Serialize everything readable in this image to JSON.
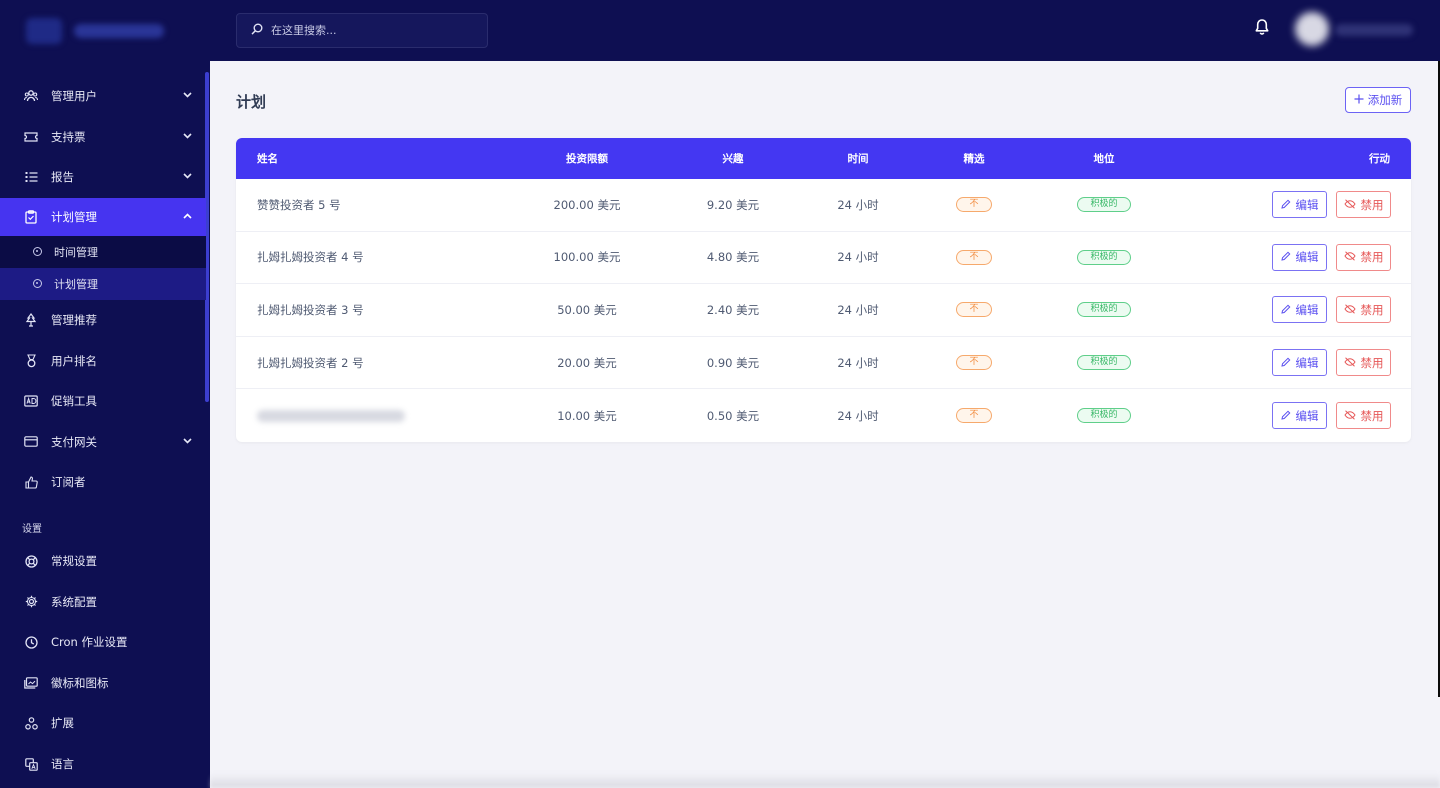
{
  "search": {
    "placeholder": "在这里搜索..."
  },
  "sidebar": {
    "items": [
      {
        "label": "管理用户",
        "icon": "users-icon",
        "chevron": "⌄"
      },
      {
        "label": "支持票",
        "icon": "ticket-icon",
        "chevron": "⌄"
      },
      {
        "label": "报告",
        "icon": "list-icon",
        "chevron": "⌄"
      },
      {
        "label": "计划管理",
        "icon": "clipboard-icon",
        "chevron": "⌃"
      }
    ],
    "subitems": [
      {
        "label": "时间管理"
      },
      {
        "label": "计划管理"
      }
    ],
    "items2": [
      {
        "label": "管理推荐",
        "icon": "tree-icon"
      },
      {
        "label": "用户排名",
        "icon": "medal-icon"
      },
      {
        "label": "促销工具",
        "icon": "ad-icon"
      },
      {
        "label": "支付网关",
        "icon": "credit-card-icon",
        "chevron": "⌄"
      },
      {
        "label": "订阅者",
        "icon": "thumbs-up-icon"
      }
    ],
    "section_title": "设置",
    "settings": [
      {
        "label": "常规设置",
        "icon": "life-ring-icon"
      },
      {
        "label": "系统配置",
        "icon": "gear-icon"
      },
      {
        "label": "Cron 作业设置",
        "icon": "clock-icon"
      },
      {
        "label": "徽标和图标",
        "icon": "image-icon"
      },
      {
        "label": "扩展",
        "icon": "puzzle-icon"
      },
      {
        "label": "语言",
        "icon": "language-icon"
      }
    ]
  },
  "main": {
    "title": "计划",
    "add_button": "添加新",
    "columns": {
      "name": "姓名",
      "invest": "投资限额",
      "interest": "兴趣",
      "time": "时间",
      "featured": "精选",
      "status": "地位",
      "action": "行动"
    },
    "rows": [
      {
        "name": "赞赞投资者 5 号",
        "invest": "200.00 美元",
        "interest": "9.20 美元",
        "time": "24 小时",
        "featured": "不",
        "status": "积极的"
      },
      {
        "name": "扎姆扎姆投资者 4 号",
        "invest": "100.00 美元",
        "interest": "4.80 美元",
        "time": "24 小时",
        "featured": "不",
        "status": "积极的"
      },
      {
        "name": "扎姆扎姆投资者 3 号",
        "invest": "50.00 美元",
        "interest": "2.40 美元",
        "time": "24 小时",
        "featured": "不",
        "status": "积极的"
      },
      {
        "name": "扎姆扎姆投资者 2 号",
        "invest": "20.00 美元",
        "interest": "0.90 美元",
        "time": "24 小时",
        "featured": "不",
        "status": "积极的"
      },
      {
        "name": "",
        "invest": "10.00 美元",
        "interest": "0.50 美元",
        "time": "24 小时",
        "featured": "不",
        "status": "积极的"
      }
    ],
    "edit_label": "编辑",
    "ban_label": "禁用"
  },
  "colors": {
    "sidebar_bg": "#0e0f52",
    "accent": "#4437f2",
    "badge_no": "#f28b3e",
    "badge_active": "#39b868",
    "ban": "#e65757"
  }
}
